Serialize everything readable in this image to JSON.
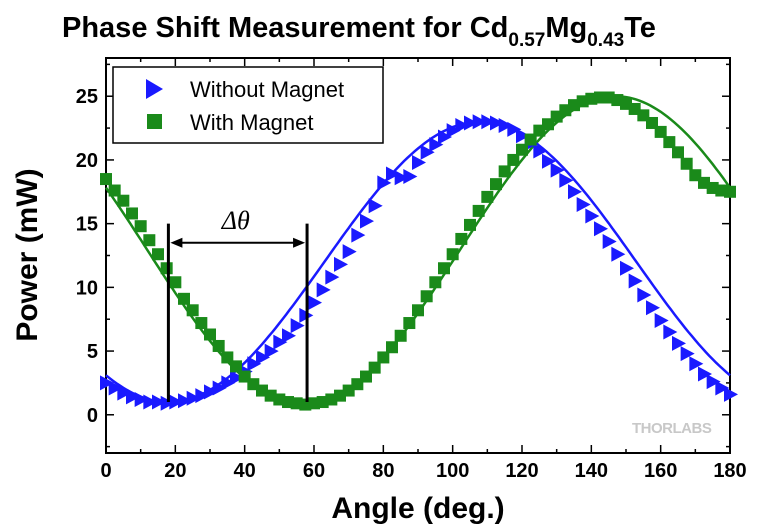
{
  "chart_data": {
    "type": "scatter",
    "title": {
      "main": "Phase Shift Measurement for Cd",
      "sub1": "0.57",
      "mid": "Mg",
      "sub2": "0.43",
      "end": "Te"
    },
    "xlabel": "Angle (deg.)",
    "ylabel": "Power (mW)",
    "xlim": [
      0,
      180
    ],
    "ylim": [
      -3,
      28
    ],
    "xticks": [
      "0",
      "20",
      "40",
      "60",
      "80",
      "100",
      "120",
      "140",
      "160",
      "180"
    ],
    "yticks": [
      "0",
      "5",
      "10",
      "15",
      "20",
      "25"
    ],
    "grid": false,
    "legend_position": "top-left",
    "series": [
      {
        "name": "Without Magnet",
        "color": "#1a1aff",
        "marker": "triangle-right",
        "model": {
          "offset": 12.0,
          "amplitude": 11.0,
          "period": 180,
          "min_at": 18
        },
        "x": [
          0,
          2.5,
          5,
          7.5,
          10,
          12.5,
          15,
          17.5,
          20,
          22.5,
          25,
          27.5,
          30,
          32.5,
          35,
          37.5,
          40,
          42.5,
          45,
          47.5,
          50,
          52.5,
          55,
          57.5,
          60,
          62.5,
          65,
          67.5,
          70,
          72.5,
          75,
          77.5,
          80,
          82.5,
          85,
          87.5,
          90,
          92.5,
          95,
          97.5,
          100,
          102.5,
          105,
          107.5,
          110,
          112.5,
          115,
          117.5,
          120,
          122.5,
          125,
          127.5,
          130,
          132.5,
          135,
          137.5,
          140,
          142.5,
          145,
          147.5,
          150,
          152.5,
          155,
          157.5,
          160,
          162.5,
          165,
          167.5,
          170,
          172.5,
          175,
          177.5,
          180
        ],
        "y": [
          2.5,
          2.1,
          1.7,
          1.4,
          1.2,
          1.0,
          1.0,
          0.9,
          1.0,
          1.1,
          1.3,
          1.5,
          1.8,
          2.1,
          2.5,
          2.9,
          3.4,
          4.0,
          4.5,
          5.0,
          5.7,
          6.2,
          7.0,
          7.8,
          8.8,
          9.8,
          10.8,
          11.8,
          12.8,
          14.1,
          15.2,
          16.4,
          18.2,
          18.9,
          18.6,
          18.7,
          19.8,
          20.6,
          21.2,
          21.8,
          22.3,
          22.7,
          22.9,
          23.0,
          23.0,
          22.9,
          22.7,
          22.4,
          21.9,
          21.3,
          20.7,
          19.9,
          19.2,
          18.4,
          17.5,
          16.5,
          15.6,
          14.6,
          13.6,
          12.6,
          11.5,
          10.5,
          9.4,
          8.4,
          7.4,
          6.5,
          5.6,
          4.8,
          4.0,
          3.2,
          2.6,
          2.1,
          1.6
        ]
      },
      {
        "name": "With Magnet",
        "color": "#1a8a1a",
        "marker": "square",
        "model": {
          "offset": 12.9,
          "amplitude": 12.1,
          "period": 180,
          "min_at": 57
        },
        "x": [
          0,
          2.5,
          5,
          7.5,
          10,
          12.5,
          15,
          17.5,
          20,
          22.5,
          25,
          27.5,
          30,
          32.5,
          35,
          37.5,
          40,
          42.5,
          45,
          47.5,
          50,
          52.5,
          55,
          57.5,
          60,
          62.5,
          65,
          67.5,
          70,
          72.5,
          75,
          77.5,
          80,
          82.5,
          85,
          87.5,
          90,
          92.5,
          95,
          97.5,
          100,
          102.5,
          105,
          107.5,
          110,
          112.5,
          115,
          117.5,
          120,
          122.5,
          125,
          127.5,
          130,
          132.5,
          135,
          137.5,
          140,
          142.5,
          145,
          147.5,
          150,
          152.5,
          155,
          157.5,
          160,
          162.5,
          165,
          167.5,
          170,
          172.5,
          175,
          177.5,
          180
        ],
        "y": [
          18.5,
          17.6,
          16.8,
          15.8,
          14.8,
          13.7,
          12.6,
          11.5,
          10.4,
          9.1,
          8.2,
          7.2,
          6.3,
          5.4,
          4.5,
          3.8,
          3.0,
          2.4,
          1.9,
          1.5,
          1.2,
          1.0,
          0.9,
          0.8,
          0.9,
          1.0,
          1.2,
          1.5,
          1.9,
          2.4,
          3.0,
          3.7,
          4.5,
          5.3,
          6.2,
          7.2,
          8.2,
          9.3,
          10.4,
          11.5,
          12.6,
          13.8,
          14.9,
          16.0,
          17.1,
          18.1,
          19.1,
          20.0,
          20.8,
          21.6,
          22.3,
          22.8,
          23.4,
          23.9,
          24.3,
          24.6,
          24.8,
          24.9,
          24.9,
          24.7,
          24.4,
          24.0,
          23.5,
          22.9,
          22.2,
          21.4,
          20.6,
          19.7,
          18.8,
          18.2,
          17.8,
          17.6,
          17.5
        ]
      }
    ],
    "annotation": {
      "label": "Δθ",
      "x_start": 18,
      "x_end": 58,
      "y": 13.5
    },
    "watermark": "THORLABS"
  }
}
